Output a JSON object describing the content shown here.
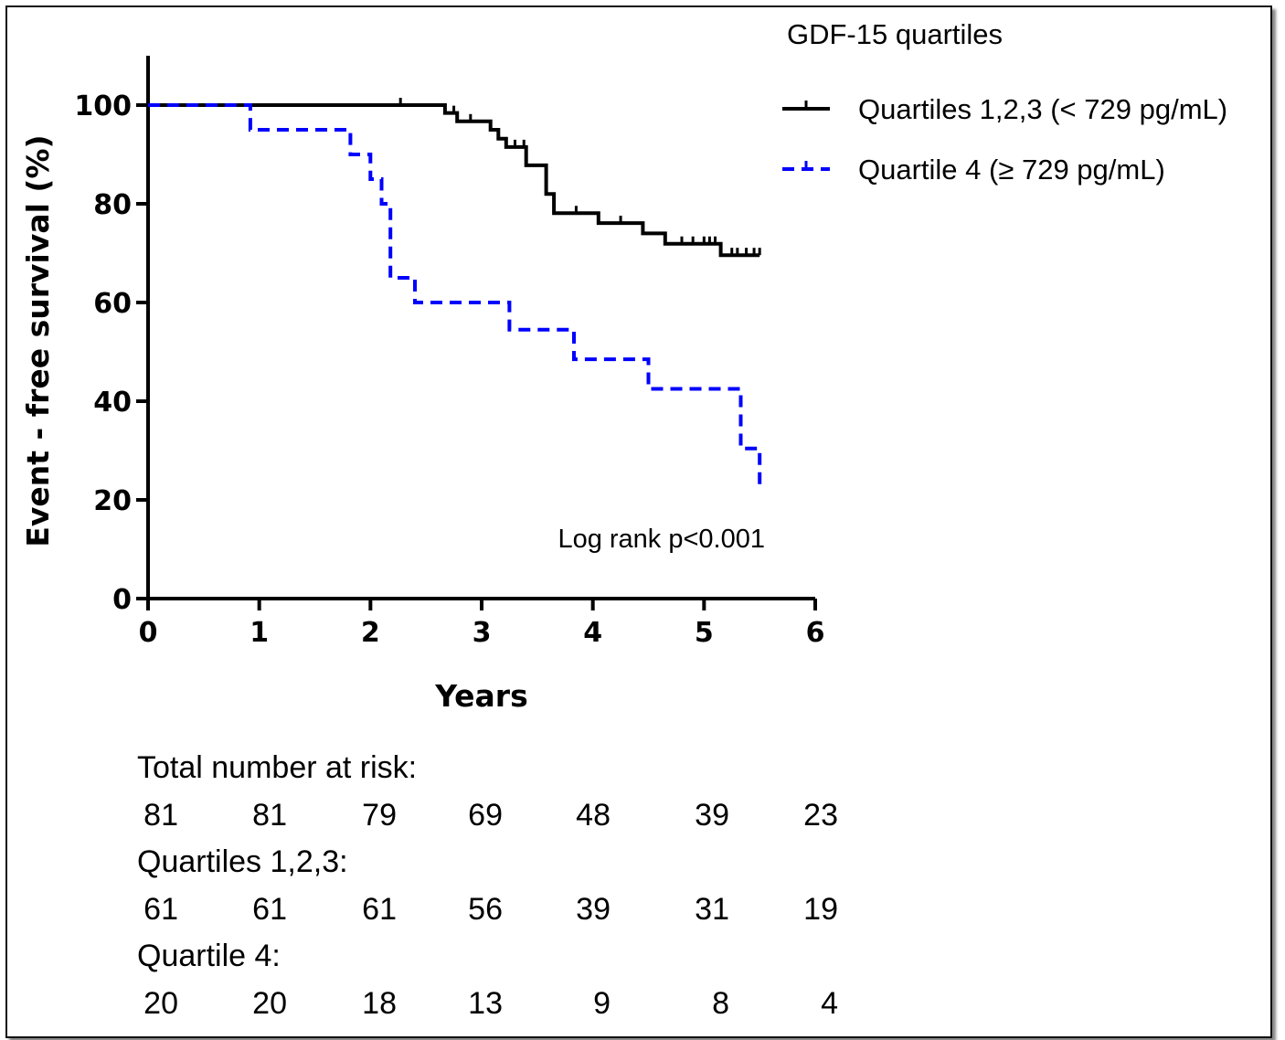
{
  "chart_data": {
    "type": "line",
    "subtype": "kaplan-meier",
    "legend_title": "GDF-15 quartiles",
    "xlabel": "Years",
    "ylabel": "Event - free survival (%)",
    "xlim": [
      0,
      6
    ],
    "ylim": [
      0,
      110
    ],
    "xticks": [
      "0",
      "1",
      "2",
      "3",
      "4",
      "5",
      "6"
    ],
    "yticks": [
      "0",
      "20",
      "40",
      "60",
      "80",
      "100"
    ],
    "legend_position": "top-right",
    "grid": false,
    "annotation": "Log rank p<0.001",
    "series": [
      {
        "name": "Quartiles 1,2,3 (< 729 pg/mL)",
        "color": "#000000",
        "style": "solid",
        "steps": [
          [
            0,
            100
          ],
          [
            2.67,
            100
          ],
          [
            2.67,
            98.4
          ],
          [
            2.78,
            98.4
          ],
          [
            2.78,
            96.7
          ],
          [
            3.08,
            96.7
          ],
          [
            3.08,
            95.0
          ],
          [
            3.15,
            95.0
          ],
          [
            3.15,
            93.2
          ],
          [
            3.22,
            93.2
          ],
          [
            3.22,
            91.5
          ],
          [
            3.4,
            91.5
          ],
          [
            3.4,
            87.8
          ],
          [
            3.58,
            87.8
          ],
          [
            3.58,
            82.0
          ],
          [
            3.65,
            82.0
          ],
          [
            3.65,
            78.1
          ],
          [
            4.05,
            78.1
          ],
          [
            4.05,
            76.1
          ],
          [
            4.45,
            76.1
          ],
          [
            4.45,
            74.0
          ],
          [
            4.65,
            74.0
          ],
          [
            4.65,
            71.9
          ],
          [
            5.15,
            71.9
          ],
          [
            5.15,
            69.6
          ],
          [
            5.5,
            69.6
          ]
        ],
        "censor_x": [
          2.27,
          2.75,
          2.9,
          3.3,
          3.38,
          3.85,
          4.25,
          4.8,
          4.9,
          5.0,
          5.05,
          5.1,
          5.25,
          5.3,
          5.38,
          5.45,
          5.5
        ]
      },
      {
        "name": "Quartile 4 (≥ 729 pg/mL)",
        "color": "#0000ff",
        "style": "dashed",
        "steps": [
          [
            0,
            100
          ],
          [
            0.92,
            100
          ],
          [
            0.92,
            95
          ],
          [
            1.82,
            95
          ],
          [
            1.82,
            90
          ],
          [
            2.0,
            90
          ],
          [
            2.0,
            85
          ],
          [
            2.1,
            85
          ],
          [
            2.1,
            80
          ],
          [
            2.18,
            80
          ],
          [
            2.18,
            65
          ],
          [
            2.4,
            65
          ],
          [
            2.4,
            60
          ],
          [
            3.25,
            60
          ],
          [
            3.25,
            54.5
          ],
          [
            3.83,
            54.5
          ],
          [
            3.83,
            48.5
          ],
          [
            4.5,
            48.5
          ],
          [
            4.5,
            42.5
          ],
          [
            5.33,
            42.5
          ],
          [
            5.33,
            30.4
          ],
          [
            5.5,
            30.4
          ],
          [
            5.5,
            22.7
          ]
        ],
        "censor_x": []
      }
    ],
    "risk_table": {
      "times": [
        0,
        1,
        2,
        3,
        4,
        5,
        6
      ],
      "rows": [
        {
          "label": "Total number at risk:",
          "values": [
            "81",
            "81",
            "79",
            "69",
            "48",
            "39",
            "23"
          ]
        },
        {
          "label": "Quartiles 1,2,3:",
          "values": [
            "61",
            "61",
            "61",
            "56",
            "39",
            "31",
            "19"
          ]
        },
        {
          "label": "Quartile 4:",
          "values": [
            "20",
            "20",
            "18",
            "13",
            "9",
            "8",
            "4"
          ]
        }
      ]
    }
  }
}
